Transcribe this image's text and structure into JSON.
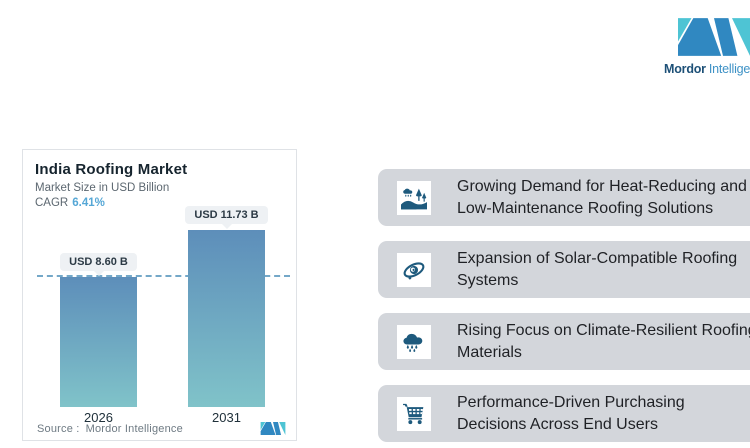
{
  "brand": {
    "name_bold": "Mordor",
    "name_light": "Intelligence"
  },
  "chart_card": {
    "title": "India Roofing Market",
    "subtitle": "Market Size in USD Billion",
    "cagr_label": "CAGR",
    "cagr_value": "6.41%",
    "source_label": "Source :",
    "source_value": "Mordor Intelligence"
  },
  "chart_data": {
    "type": "bar",
    "title": "India Roofing Market",
    "subtitle": "Market Size in USD Billion",
    "unit": "USD Billion",
    "cagr_percent": 6.41,
    "categories": [
      "2026",
      "2031"
    ],
    "values": [
      8.6,
      11.73
    ],
    "bar_labels": [
      "USD 8.60 B",
      "USD 11.73 B"
    ],
    "reference_line_value": 8.6,
    "ylim": [
      0,
      12.5
    ],
    "grid": false,
    "legend": "none",
    "colors": {
      "bar_gradient_top": "#5d8eba",
      "bar_gradient_bottom": "#80c3c9",
      "reference_line": "#74a8c8",
      "cagr_accent": "#55a7d6",
      "brand_teal": "#4ec4d4",
      "brand_blue": "#3088c1"
    }
  },
  "key_points": [
    {
      "icon": "landscape-rain-icon",
      "text": "Growing Demand for Heat-Reducing and\nLow-Maintenance Roofing Solutions"
    },
    {
      "icon": "orbit-icon",
      "text": "Expansion of Solar-Compatible Roofing\nSystems"
    },
    {
      "icon": "rain-cloud-icon",
      "text": "Rising Focus on Climate-Resilient Roofing\nMaterials"
    },
    {
      "icon": "cart-icon",
      "text": "Performance-Driven Purchasing\nDecisions Across End Users"
    }
  ]
}
